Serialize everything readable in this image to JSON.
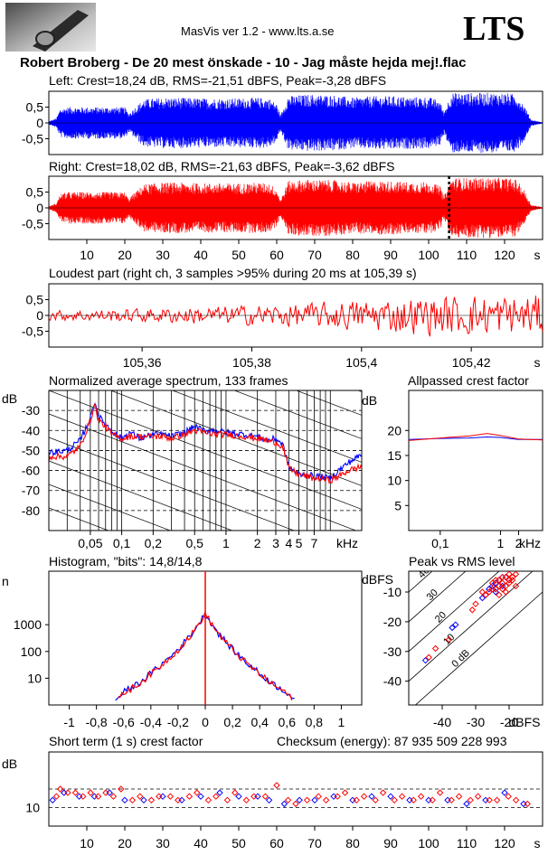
{
  "header": {
    "app_title": "MasVis ver 1.2 - www.lts.a.se",
    "brand": "LTS",
    "song_title": "Robert Broberg - De 20 mest önskade - 10 - Jag måste hejda mej!.flac"
  },
  "colors": {
    "left": "#0000ff",
    "right": "#ff0000",
    "grid": "#000000"
  },
  "chart_data": [
    {
      "id": "left",
      "type": "line",
      "title": "Left: Crest=18,24 dB, RMS=-21,51 dBFS, Peak=-3,28 dBFS",
      "ylim": [
        -1,
        1
      ],
      "xlim": [
        0,
        130
      ],
      "yticks": [
        0.5,
        0,
        -0.5
      ],
      "ytick_labels": [
        "0,5",
        "0",
        "-0,5"
      ],
      "series": [
        {
          "color": "#0000ff",
          "envelope_x": [
            0,
            2,
            3,
            5,
            8,
            12,
            16,
            20,
            21,
            25,
            30,
            35,
            40,
            45,
            50,
            55,
            58,
            60,
            61,
            63,
            68,
            75,
            80,
            85,
            90,
            95,
            100,
            103,
            104,
            106,
            110,
            115,
            120,
            123,
            125,
            127,
            130
          ],
          "envelope_amp": [
            0.05,
            0.15,
            0.45,
            0.5,
            0.5,
            0.5,
            0.5,
            0.5,
            0.3,
            0.75,
            0.8,
            0.8,
            0.78,
            0.78,
            0.78,
            0.8,
            0.78,
            0.6,
            0.25,
            0.85,
            0.9,
            0.88,
            0.8,
            0.85,
            0.85,
            0.82,
            0.82,
            0.7,
            0.35,
            0.95,
            0.95,
            0.95,
            0.95,
            0.9,
            0.6,
            0.1,
            0.02
          ]
        }
      ]
    },
    {
      "id": "right",
      "type": "line",
      "title": "Right: Crest=18,02 dB, RMS=-21,63 dBFS, Peak=-3,62 dBFS",
      "ylim": [
        -1,
        1
      ],
      "xlim": [
        0,
        130
      ],
      "yticks": [
        0.5,
        0,
        -0.5
      ],
      "ytick_labels": [
        "0,5",
        "0",
        "-0,5"
      ],
      "xticks": [
        10,
        20,
        30,
        40,
        50,
        60,
        70,
        80,
        90,
        100,
        110,
        120
      ],
      "xunit": "s",
      "marker_x": 105.39,
      "series": [
        {
          "color": "#ff0000",
          "envelope_x": [
            0,
            2,
            3,
            5,
            8,
            12,
            16,
            20,
            21,
            25,
            30,
            35,
            40,
            45,
            50,
            55,
            58,
            60,
            61,
            63,
            68,
            75,
            80,
            85,
            90,
            95,
            100,
            103,
            104,
            106,
            110,
            115,
            120,
            123,
            125,
            127,
            130
          ],
          "envelope_amp": [
            0.05,
            0.15,
            0.45,
            0.5,
            0.5,
            0.5,
            0.5,
            0.5,
            0.3,
            0.75,
            0.8,
            0.8,
            0.78,
            0.78,
            0.78,
            0.8,
            0.78,
            0.6,
            0.25,
            0.85,
            0.9,
            0.88,
            0.8,
            0.85,
            0.85,
            0.82,
            0.82,
            0.7,
            0.35,
            0.95,
            0.95,
            0.95,
            0.95,
            0.9,
            0.6,
            0.1,
            0.02
          ]
        }
      ]
    },
    {
      "id": "loudest",
      "type": "line",
      "title": "Loudest part (right ch, 3 samples >95% during 20 ms at 105,39 s)",
      "xlim": [
        105.343,
        105.433
      ],
      "ylim": [
        -1,
        1
      ],
      "yticks": [
        0.5,
        0,
        -0.5
      ],
      "ytick_labels": [
        "0,5",
        "0",
        "-0,5"
      ],
      "xticks": [
        105.36,
        105.38,
        105.4,
        105.42
      ],
      "xtick_labels": [
        "105,36",
        "105,38",
        "105,4",
        "105,42"
      ],
      "xunit": "s",
      "series": [
        {
          "color": "#ff0000",
          "amplitude_x": [
            105.343,
            105.36,
            105.38,
            105.39,
            105.4,
            105.41,
            105.42,
            105.433
          ],
          "amplitude": [
            0.15,
            0.2,
            0.3,
            0.35,
            0.45,
            0.55,
            0.6,
            0.6
          ]
        }
      ]
    },
    {
      "id": "spectrum",
      "type": "line",
      "title": "Normalized average spectrum, 133 frames",
      "ylabel": "dB",
      "xunit": "kHz",
      "xscale": "log",
      "xlim": [
        0.02,
        20
      ],
      "ylim": [
        -90,
        -20
      ],
      "yticks": [
        -30,
        -40,
        -50,
        -60,
        -70,
        -80
      ],
      "ytick_labels": [
        "-30",
        "-40",
        "-50",
        "-60",
        "-70",
        "-80"
      ],
      "xticks": [
        0.05,
        0.1,
        0.2,
        0.5,
        1,
        2,
        3,
        4,
        5,
        7
      ],
      "xtick_labels": [
        "0,05",
        "0,1",
        "0,2",
        "0,5",
        "1",
        "2",
        "3",
        "4",
        "5",
        "7"
      ],
      "series": [
        {
          "color": "#0000ff",
          "x": [
            0.02,
            0.03,
            0.04,
            0.05,
            0.055,
            0.06,
            0.07,
            0.08,
            0.1,
            0.12,
            0.15,
            0.2,
            0.25,
            0.3,
            0.4,
            0.5,
            0.6,
            0.8,
            1,
            1.5,
            2,
            2.5,
            3,
            3.5,
            4,
            5,
            6,
            7,
            8,
            10,
            12,
            15,
            20
          ],
          "y": [
            -51,
            -50,
            -45,
            -34,
            -25,
            -33,
            -37,
            -40,
            -44,
            -41,
            -44,
            -42,
            -42,
            -43,
            -41,
            -38,
            -40,
            -40,
            -41,
            -42,
            -43,
            -45,
            -44,
            -47,
            -58,
            -62,
            -62,
            -63,
            -63,
            -64,
            -60,
            -56,
            -52
          ]
        },
        {
          "color": "#ff0000",
          "x": [
            0.02,
            0.03,
            0.04,
            0.05,
            0.055,
            0.06,
            0.07,
            0.08,
            0.1,
            0.12,
            0.15,
            0.2,
            0.25,
            0.3,
            0.4,
            0.5,
            0.6,
            0.8,
            1,
            1.5,
            2,
            2.5,
            3,
            3.5,
            4,
            5,
            6,
            7,
            8,
            10,
            12,
            15,
            20
          ],
          "y": [
            -53,
            -53,
            -48,
            -35,
            -27,
            -35,
            -38,
            -42,
            -44,
            -43,
            -43,
            -43,
            -43,
            -44,
            -42,
            -40,
            -41,
            -42,
            -42,
            -43,
            -44,
            -45,
            -46,
            -48,
            -59,
            -62,
            -63,
            -64,
            -64,
            -65,
            -63,
            -60,
            -58
          ]
        }
      ]
    },
    {
      "id": "allpass",
      "type": "line",
      "title": "Allpassed crest factor",
      "ylabel": "dB",
      "xunit": "kHz",
      "xscale": "log",
      "xlim": [
        0.03,
        5
      ],
      "ylim": [
        0,
        28
      ],
      "yticks": [
        20,
        15,
        10,
        5
      ],
      "ytick_labels": [
        "20",
        "15",
        "10",
        "5"
      ],
      "xticks": [
        0.1,
        1,
        2
      ],
      "xtick_labels": [
        "0,1",
        "1",
        "2"
      ],
      "series": [
        {
          "color": "#0000ff",
          "x": [
            0.03,
            0.1,
            0.3,
            0.6,
            1,
            2,
            5
          ],
          "y": [
            18.2,
            18.4,
            18.5,
            18.7,
            18.6,
            18.2,
            18.2
          ]
        },
        {
          "color": "#ff0000",
          "x": [
            0.03,
            0.1,
            0.3,
            0.6,
            1,
            2,
            5
          ],
          "y": [
            18.0,
            18.5,
            18.9,
            19.4,
            19.0,
            18.3,
            18.1
          ]
        }
      ]
    },
    {
      "id": "histogram",
      "type": "line",
      "title": "Histogram, \"bits\": 14,8/14,8",
      "ylabel": "n",
      "yscale": "log",
      "xlim": [
        -1.15,
        1.15
      ],
      "ylim": [
        1,
        100000
      ],
      "yticks": [
        1000,
        100,
        10
      ],
      "ytick_labels": [
        "1000",
        "100",
        "10"
      ],
      "xticks": [
        -1,
        -0.8,
        -0.6,
        -0.4,
        -0.2,
        0,
        0.2,
        0.4,
        0.6,
        0.8,
        1
      ],
      "xtick_labels": [
        "-1",
        "-0,8",
        "-0,6",
        "-0,4",
        "-0,2",
        "0",
        "0,2",
        "0,4",
        "0,6",
        "0,8",
        "1"
      ],
      "series": [
        {
          "color": "#0000ff",
          "x": [
            -0.66,
            -0.6,
            -0.5,
            -0.4,
            -0.3,
            -0.2,
            -0.1,
            0,
            0.1,
            0.2,
            0.3,
            0.4,
            0.5,
            0.6,
            0.66
          ],
          "y": [
            1.5,
            3,
            6,
            15,
            40,
            120,
            450,
            2500,
            450,
            120,
            40,
            15,
            6,
            3,
            1.5
          ]
        },
        {
          "color": "#ff0000",
          "x": [
            -0.64,
            -0.6,
            -0.5,
            -0.4,
            -0.3,
            -0.2,
            -0.1,
            0,
            0.1,
            0.2,
            0.3,
            0.4,
            0.5,
            0.6,
            0.64
          ],
          "y": [
            1.5,
            2.8,
            5.5,
            14,
            38,
            115,
            430,
            2500,
            430,
            115,
            38,
            14,
            5.5,
            2.8,
            1.5
          ]
        }
      ]
    },
    {
      "id": "peakrms",
      "type": "scatter",
      "title": "Peak vs RMS level",
      "ylabel": "dBFS",
      "xunit": "dBFS",
      "xlim": [
        -50,
        -10
      ],
      "ylim": [
        -48,
        -3
      ],
      "yticks": [
        -10,
        -20,
        -30,
        -40
      ],
      "ytick_labels": [
        "-10",
        "-20",
        "-30",
        "-40"
      ],
      "xticks": [
        -40,
        -30,
        -20
      ],
      "xtick_labels": [
        "-40",
        "-30",
        "-20"
      ],
      "diagonal_labels": [
        "40",
        "30",
        "20",
        "10",
        "0 dB"
      ],
      "series": [
        {
          "color": "#0000ff",
          "x": [
            -22,
            -23,
            -24,
            -25,
            -21,
            -20,
            -26,
            -27,
            -28,
            -22,
            -24,
            -45,
            -36,
            -37
          ],
          "y": [
            -5,
            -6,
            -7,
            -8,
            -5,
            -6,
            -9,
            -11,
            -12,
            -8,
            -10,
            -33,
            -21,
            -22
          ]
        },
        {
          "color": "#ff0000",
          "x": [
            -20,
            -21,
            -22,
            -23,
            -24,
            -25,
            -19,
            -18,
            -20,
            -21,
            -22,
            -23,
            -24,
            -26,
            -27,
            -19,
            -20,
            -22,
            -25,
            -28,
            -30,
            -31,
            -42,
            -44,
            -38,
            -18,
            -23,
            -21
          ],
          "y": [
            -4,
            -5,
            -5,
            -6,
            -6,
            -7,
            -5,
            -4,
            -7,
            -8,
            -9,
            -8,
            -9,
            -10,
            -11,
            -6,
            -6,
            -7,
            -9,
            -10,
            -14,
            -16,
            -29,
            -32,
            -26,
            -8,
            -11,
            -10
          ]
        }
      ]
    },
    {
      "id": "shortcrest",
      "type": "scatter",
      "title": "Short term (1 s) crest factor",
      "checksum_label": "Checksum (energy):   87 935 509 228 993",
      "ylabel": "dB",
      "xunit": "s",
      "xlim": [
        0,
        130
      ],
      "ylim": [
        5,
        25
      ],
      "yticks": [
        10
      ],
      "ytick_labels": [
        "10"
      ],
      "dashed_y": [
        10,
        15
      ],
      "xticks": [
        10,
        20,
        30,
        40,
        50,
        60,
        70,
        80,
        90,
        100,
        110,
        120
      ],
      "series": [
        {
          "color": "#0000ff",
          "x": [
            1,
            4,
            8,
            12,
            16,
            20,
            25,
            30,
            35,
            40,
            45,
            50,
            55,
            58,
            62,
            66,
            70,
            75,
            80,
            85,
            90,
            95,
            100,
            105,
            110,
            115,
            120,
            125
          ],
          "y": [
            12,
            14,
            13,
            13,
            14,
            12,
            12,
            13,
            12,
            13,
            14,
            13,
            13,
            12,
            11,
            12,
            12,
            13,
            12,
            13,
            13,
            12,
            12,
            12,
            11,
            12,
            14,
            11
          ]
        },
        {
          "color": "#ff0000",
          "x": [
            2,
            3,
            5,
            7,
            9,
            11,
            13,
            15,
            17,
            19,
            22,
            24,
            27,
            29,
            32,
            34,
            37,
            39,
            42,
            44,
            47,
            49,
            52,
            54,
            57,
            60,
            63,
            65,
            68,
            71,
            73,
            76,
            78,
            81,
            83,
            86,
            88,
            91,
            93,
            96,
            98,
            101,
            103,
            106,
            108,
            111,
            113,
            116,
            118,
            121,
            123,
            126
          ],
          "y": [
            13,
            15,
            14,
            14,
            13,
            14,
            13,
            14,
            13,
            15,
            12,
            13,
            12,
            13,
            13,
            12,
            13,
            14,
            12,
            13,
            12,
            14,
            12,
            13,
            13,
            16,
            12,
            11,
            12,
            13,
            12,
            13,
            14,
            12,
            13,
            12,
            14,
            12,
            13,
            12,
            13,
            12,
            14,
            12,
            13,
            12,
            13,
            12,
            12,
            13,
            12,
            11
          ]
        }
      ]
    }
  ]
}
